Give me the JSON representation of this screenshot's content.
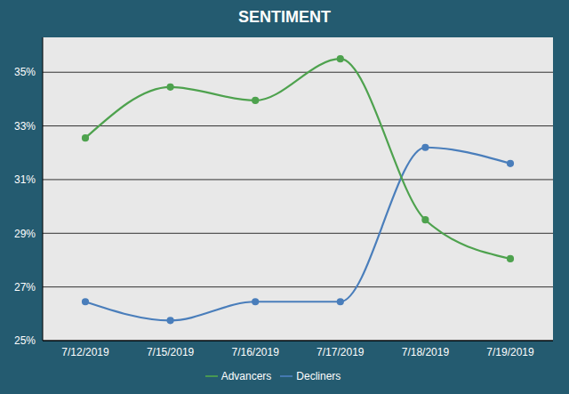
{
  "chart_data": {
    "type": "line",
    "title": "SENTIMENT",
    "categories": [
      "7/12/2019",
      "7/15/2019",
      "7/16/2019",
      "7/17/2019",
      "7/18/2019",
      "7/19/2019"
    ],
    "series": [
      {
        "name": "Decliners",
        "color": "#4a7ebb",
        "values": [
          26.45,
          25.75,
          26.45,
          26.45,
          32.2,
          31.6
        ]
      },
      {
        "name": "Advancers",
        "color": "#4ea24e",
        "values": [
          32.55,
          34.45,
          33.95,
          35.5,
          29.5,
          28.05
        ]
      }
    ],
    "ylim": [
      25,
      36.3
    ],
    "yticks": [
      {
        "value": 25,
        "label": "25%"
      },
      {
        "value": 27,
        "label": "27%"
      },
      {
        "value": 29,
        "label": "29%"
      },
      {
        "value": 31,
        "label": "31%"
      },
      {
        "value": 33,
        "label": "33%"
      },
      {
        "value": 35,
        "label": "35%"
      }
    ],
    "grid": true,
    "legend": "bottom",
    "marker": "circle",
    "line_style": "smooth"
  }
}
